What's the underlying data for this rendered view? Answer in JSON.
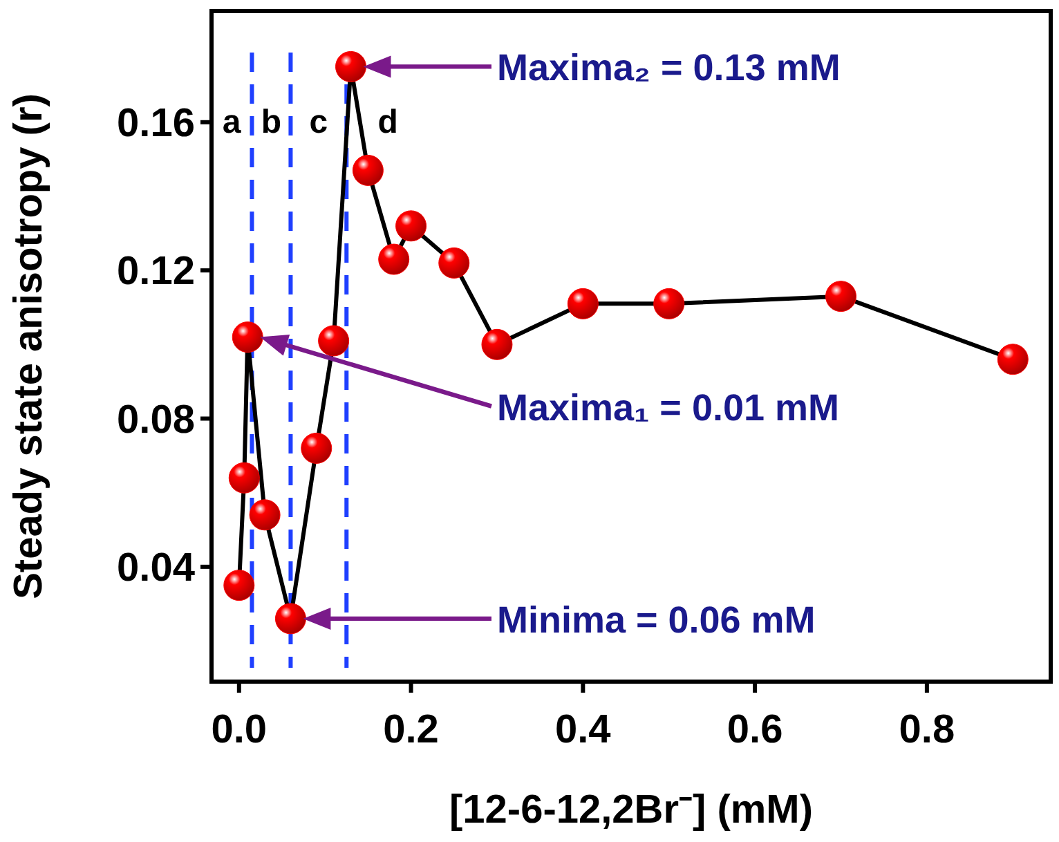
{
  "chart_data": {
    "type": "line",
    "xlabel": "[12-6-12,2Br⁻] (mM)",
    "ylabel": "Steady state anisotropy (r)",
    "x": [
      0,
      0.006,
      0.01,
      0.03,
      0.06,
      0.09,
      0.11,
      0.13,
      0.15,
      0.18,
      0.2,
      0.25,
      0.3,
      0.4,
      0.5,
      0.7,
      0.9
    ],
    "series": [
      {
        "color": "#ff0000",
        "values": [
          0.035,
          0.064,
          0.102,
          0.054,
          0.026,
          0.072,
          0.101,
          0.175,
          0.147,
          0.123,
          0.132,
          0.122,
          0.1,
          0.111,
          0.111,
          0.113,
          0.096
        ]
      }
    ],
    "xlim": [
      -0.032,
      0.944
    ],
    "ylim": [
      0.009,
      0.19
    ],
    "xticks": [
      {
        "value": 0,
        "label": "0.0"
      },
      0.2,
      0.4,
      0.6,
      0.8
    ],
    "yticks": [
      0.04,
      0.08,
      0.12,
      0.16
    ],
    "marker": "circle",
    "line_style": "solid",
    "grid": false,
    "ref_lines": [
      {
        "axis": "x",
        "value": 0.015,
        "color": "#1f3fff",
        "line_style": "dashed"
      },
      {
        "axis": "x",
        "value": 0.06,
        "color": "#1f3fff",
        "line_style": "dashed"
      },
      {
        "axis": "x",
        "value": 0.125,
        "color": "#1f3fff",
        "line_style": "dashed"
      }
    ],
    "annotations": [
      "Maxima₂ = 0.13 mM",
      "Maxima₁ = 0.01 mM",
      "Minima = 0.06 mM",
      "a",
      "b",
      "c",
      "d"
    ]
  }
}
